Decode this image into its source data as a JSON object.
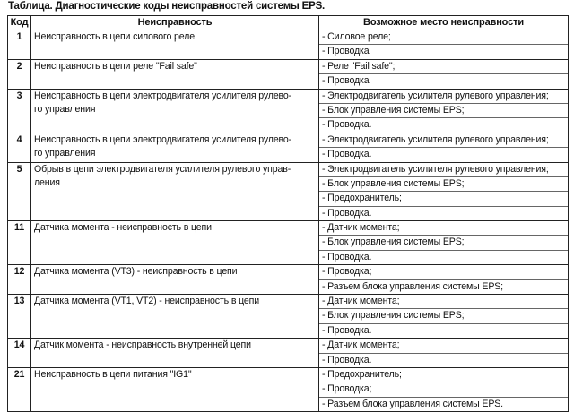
{
  "title": "Таблица. Диагностические коды неисправностей системы EPS.",
  "headers": {
    "code": "Код",
    "fault": "Неисправность",
    "place": "Возможное место неисправности"
  },
  "rows": [
    {
      "code": "1",
      "fault": [
        "Неисправность в цепи силового реле"
      ],
      "places": [
        "- Силовое реле;",
        "- Проводка"
      ]
    },
    {
      "code": "2",
      "fault": [
        "Неисправность в цепи реле \"Fail safe\""
      ],
      "places": [
        "- Реле \"Fail safe\";",
        "- Проводка"
      ]
    },
    {
      "code": "3",
      "fault": [
        "Неисправность в цепи электродвигателя усилителя рулево-",
        "го управления"
      ],
      "places": [
        "- Электродвигатель усилителя рулевого управления;",
        "- Блок управления системы EPS;",
        "- Проводка."
      ]
    },
    {
      "code": "4",
      "fault": [
        "Неисправность в цепи электродвигателя усилителя рулево-",
        "го управления"
      ],
      "places": [
        "- Электродвигатель усилителя рулевого управления;",
        "- Проводка."
      ]
    },
    {
      "code": "5",
      "fault": [
        "Обрыв в цепи электродвигателя усилителя рулевого управ-",
        "ления"
      ],
      "places": [
        "- Электродвигатель усилителя рулевого управления;",
        "- Блок управления системы EPS;",
        "- Предохранитель;",
        "- Проводка."
      ]
    },
    {
      "code": "11",
      "fault": [
        "Датчика момента - неисправность в цепи"
      ],
      "places": [
        "- Датчик момента;",
        "- Блок управления системы EPS;",
        "- Проводка."
      ]
    },
    {
      "code": "12",
      "fault": [
        "Датчика момента (VT3) - неисправность в цепи"
      ],
      "places": [
        "- Проводка;",
        "- Разъем блока управления системы EPS;"
      ]
    },
    {
      "code": "13",
      "fault": [
        "Датчика момента (VT1, VT2) - неисправность в цепи"
      ],
      "places": [
        "- Датчик момента;",
        "- Блок управления системы EPS;",
        "- Проводка."
      ]
    },
    {
      "code": "14",
      "fault": [
        "Датчик момента - неисправность внутренней цепи"
      ],
      "places": [
        "- Датчик момента;",
        "- Проводка."
      ]
    },
    {
      "code": "21",
      "fault": [
        "Неисправность в цепи питания \"IG1\""
      ],
      "places": [
        "- Предохранитель;",
        "- Проводка;",
        "- Разъем блока управления системы EPS."
      ]
    }
  ]
}
